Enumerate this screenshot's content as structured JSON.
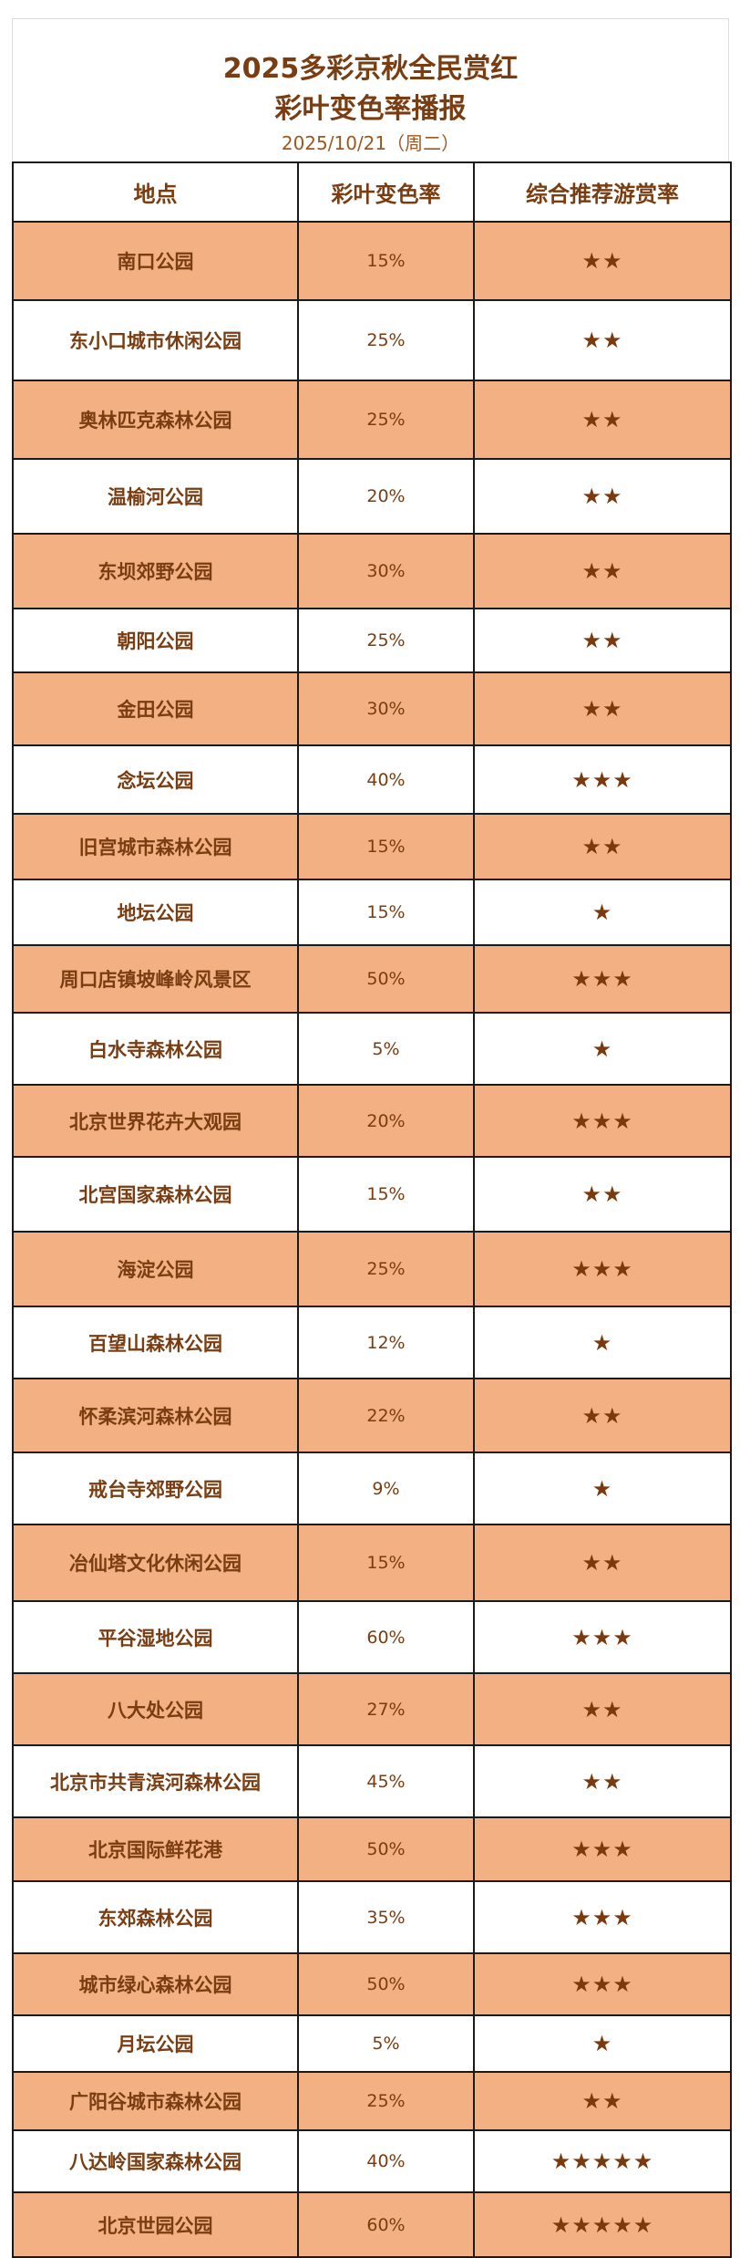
{
  "header": {
    "title_line1": "2025多彩京秋全民赏红",
    "title_line2": "彩叶变色率播报",
    "date": "2025/10/21（周二）"
  },
  "colors": {
    "row_highlight": "#f2b083",
    "text": "#7a3d12"
  },
  "table": {
    "columns": [
      "地点",
      "彩叶变色率",
      "综合推荐游赏率"
    ],
    "rows": [
      {
        "place": "南口公园",
        "rate": "15%",
        "stars": "★★"
      },
      {
        "place": "东小口城市休闲公园",
        "rate": "25%",
        "stars": "★★"
      },
      {
        "place": "奥林匹克森林公园",
        "rate": "25%",
        "stars": "★★"
      },
      {
        "place": "温榆河公园",
        "rate": "20%",
        "stars": "★★"
      },
      {
        "place": "东坝郊野公园",
        "rate": "30%",
        "stars": "★★"
      },
      {
        "place": "朝阳公园",
        "rate": "25%",
        "stars": "★★"
      },
      {
        "place": "金田公园",
        "rate": "30%",
        "stars": "★★"
      },
      {
        "place": "念坛公园",
        "rate": "40%",
        "stars": "★★★"
      },
      {
        "place": "旧宫城市森林公园",
        "rate": "15%",
        "stars": "★★"
      },
      {
        "place": "地坛公园",
        "rate": "15%",
        "stars": "★"
      },
      {
        "place": "周口店镇坡峰岭风景区",
        "rate": "50%",
        "stars": "★★★"
      },
      {
        "place": "白水寺森林公园",
        "rate": "5%",
        "stars": "★"
      },
      {
        "place": "北京世界花卉大观园",
        "rate": "20%",
        "stars": "★★★"
      },
      {
        "place": "北宫国家森林公园",
        "rate": "15%",
        "stars": "★★"
      },
      {
        "place": "海淀公园",
        "rate": "25%",
        "stars": "★★★"
      },
      {
        "place": "百望山森林公园",
        "rate": "12%",
        "stars": "★"
      },
      {
        "place": "怀柔滨河森林公园",
        "rate": "22%",
        "stars": "★★"
      },
      {
        "place": "戒台寺郊野公园",
        "rate": "9%",
        "stars": "★"
      },
      {
        "place": "冶仙塔文化休闲公园",
        "rate": "15%",
        "stars": "★★"
      },
      {
        "place": "平谷湿地公园",
        "rate": "60%",
        "stars": "★★★"
      },
      {
        "place": "八大处公园",
        "rate": "27%",
        "stars": "★★"
      },
      {
        "place": "北京市共青滨河森林公园",
        "rate": "45%",
        "stars": "★★"
      },
      {
        "place": "北京国际鲜花港",
        "rate": "50%",
        "stars": "★★★"
      },
      {
        "place": "东郊森林公园",
        "rate": "35%",
        "stars": "★★★"
      },
      {
        "place": "城市绿心森林公园",
        "rate": "50%",
        "stars": "★★★"
      },
      {
        "place": "月坛公园",
        "rate": "5%",
        "stars": "★"
      },
      {
        "place": "广阳谷城市森林公园",
        "rate": "25%",
        "stars": "★★"
      },
      {
        "place": "八达岭国家森林公园",
        "rate": "40%",
        "stars": "★★★★★"
      },
      {
        "place": "北京世园公园",
        "rate": "60%",
        "stars": "★★★★★"
      }
    ]
  }
}
